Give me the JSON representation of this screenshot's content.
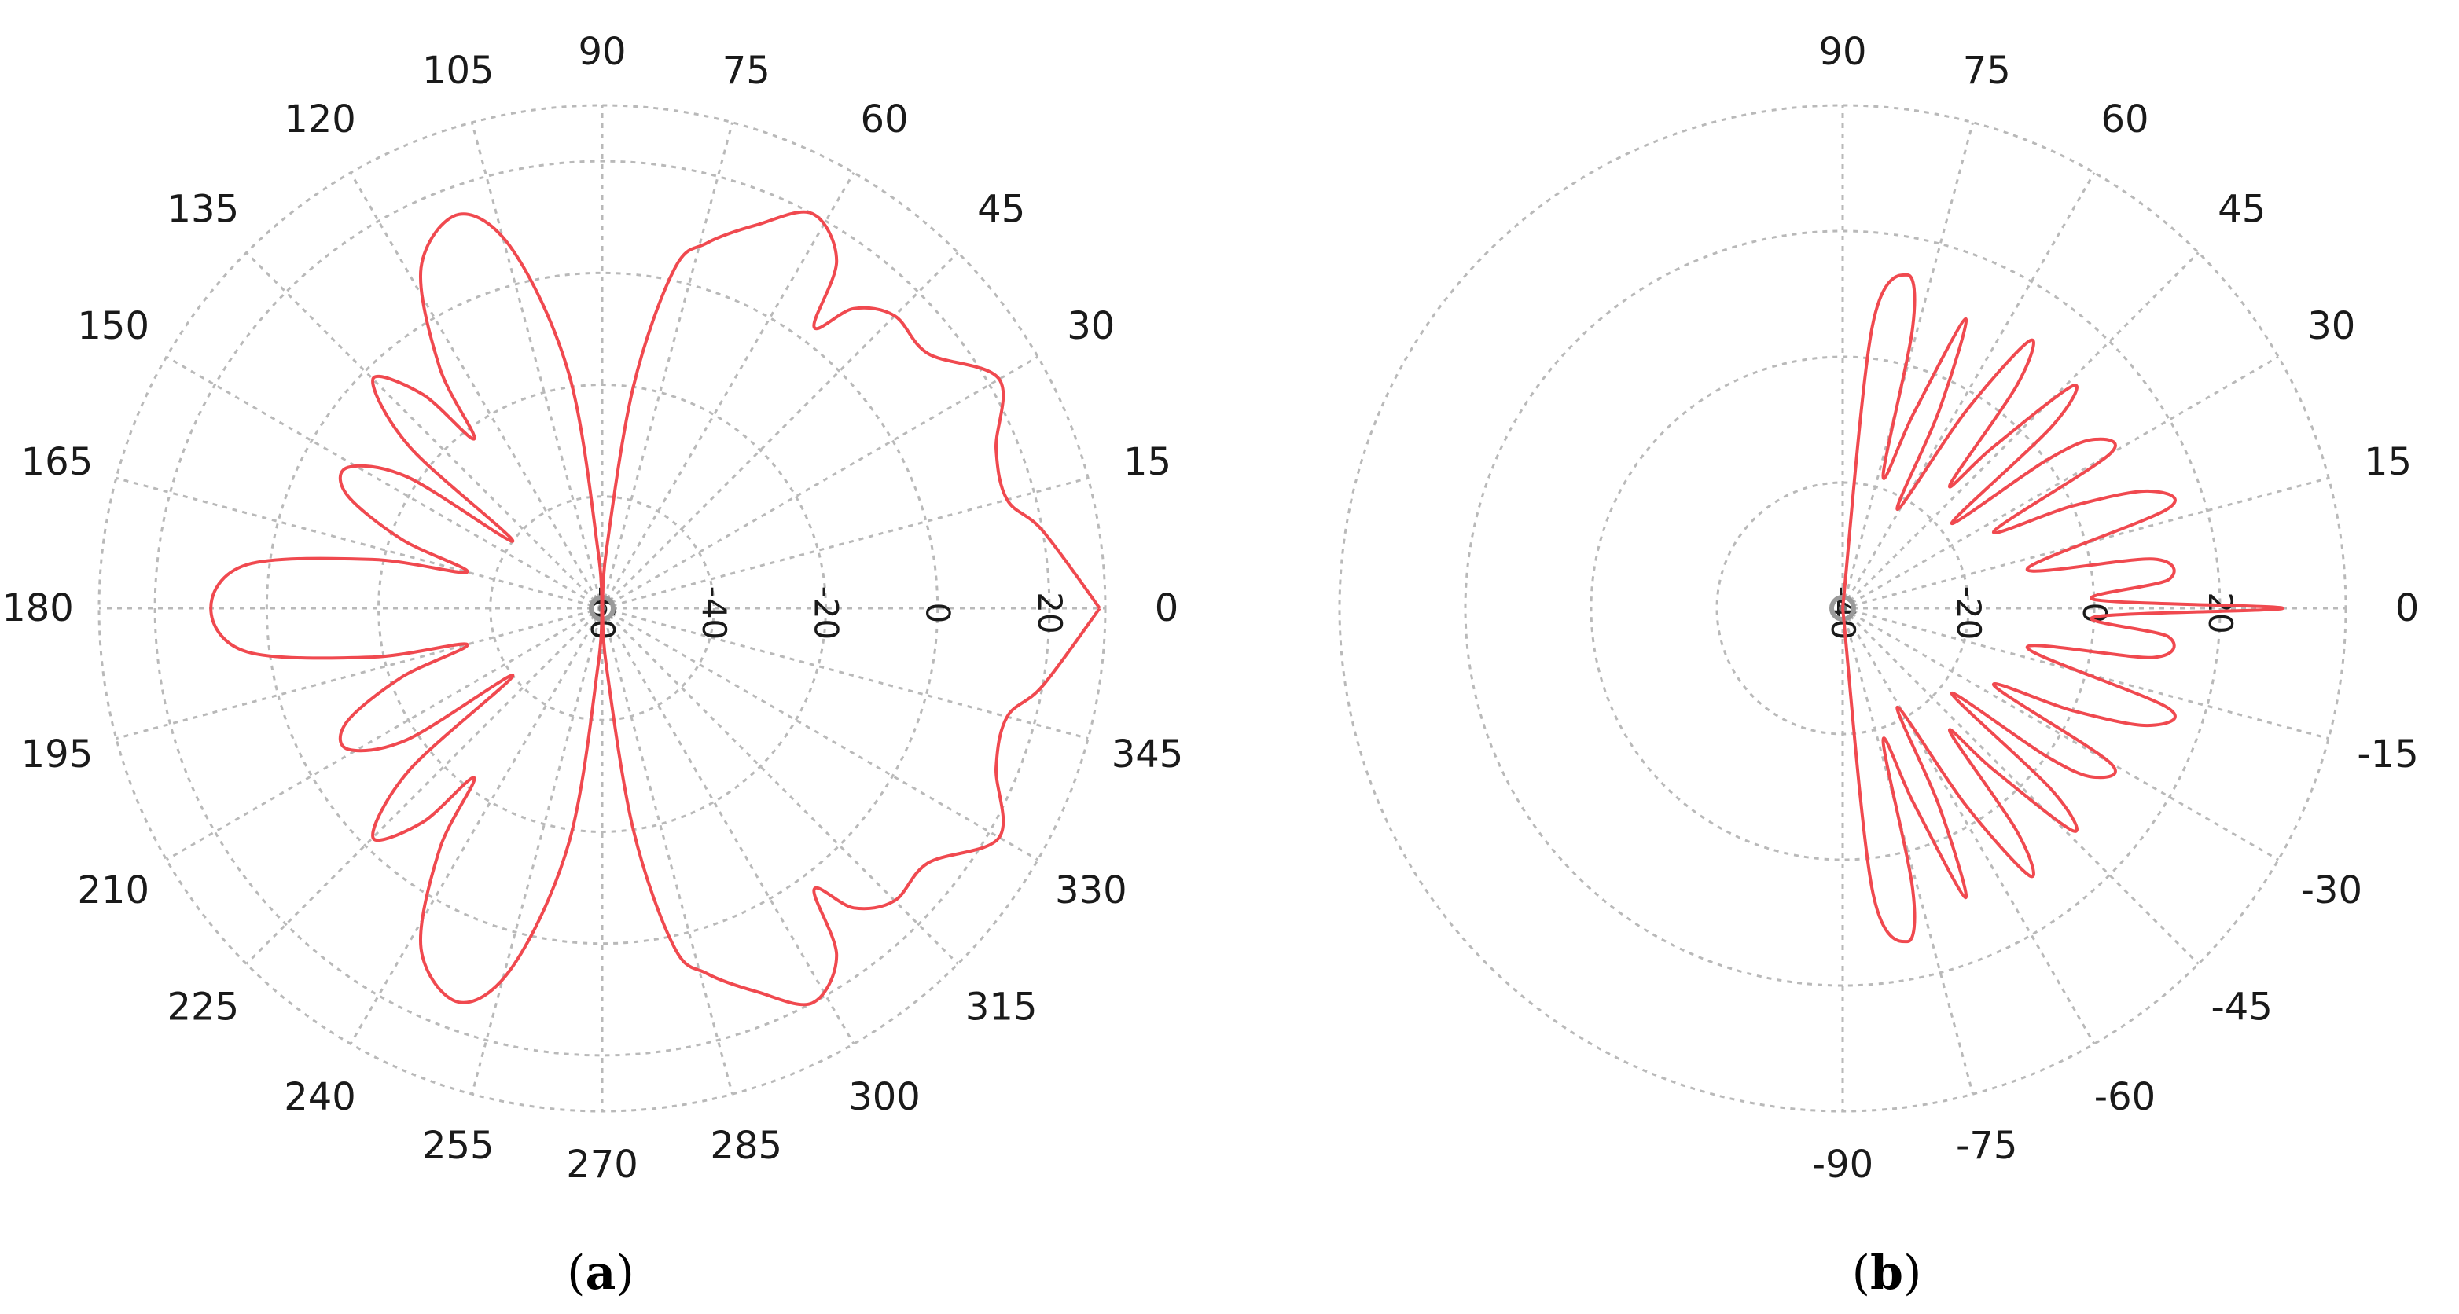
{
  "chart_data": [
    {
      "type": "polar",
      "panel_label": "a",
      "angle_unit": "deg",
      "angle_ticks": [
        0,
        15,
        30,
        45,
        60,
        75,
        90,
        105,
        120,
        135,
        150,
        165,
        180,
        195,
        210,
        225,
        240,
        255,
        270,
        285,
        300,
        315,
        330,
        345
      ],
      "radial_ticks": [
        -60,
        -40,
        -20,
        0,
        20
      ],
      "rlim": [
        -60,
        30
      ],
      "grid": true,
      "line_color": "#f0494f",
      "series": [
        {
          "points": [
            [
              0,
              29
            ],
            [
              10,
              20
            ],
            [
              15,
              15
            ],
            [
              22,
              16
            ],
            [
              30,
              22
            ],
            [
              38,
              14
            ],
            [
              45,
              14
            ],
            [
              50,
              10
            ],
            [
              53,
              3
            ],
            [
              56,
              15
            ],
            [
              62,
              20
            ],
            [
              68,
              14
            ],
            [
              74,
              8
            ],
            [
              78,
              2
            ],
            [
              82,
              -20
            ],
            [
              86,
              -50
            ],
            [
              90,
              -60
            ],
            [
              94,
              -50
            ],
            [
              98,
              -18
            ],
            [
              104,
              6
            ],
            [
              110,
              15
            ],
            [
              118,
              9
            ],
            [
              124,
              -8
            ],
            [
              127,
              -22
            ],
            [
              130,
              -10
            ],
            [
              135,
              -2
            ],
            [
              140,
              -15
            ],
            [
              143,
              -40
            ],
            [
              146,
              -18
            ],
            [
              151,
              -8
            ],
            [
              156,
              -10
            ],
            [
              161,
              -22
            ],
            [
              165,
              -35
            ],
            [
              168,
              -18
            ],
            [
              173,
              4
            ],
            [
              180,
              10
            ],
            [
              187,
              4
            ],
            [
              192,
              -18
            ],
            [
              195,
              -35
            ],
            [
              199,
              -22
            ],
            [
              204,
              -10
            ],
            [
              209,
              -8
            ],
            [
              214,
              -18
            ],
            [
              217,
              -40
            ],
            [
              220,
              -15
            ],
            [
              225,
              -2
            ],
            [
              230,
              -10
            ],
            [
              233,
              -22
            ],
            [
              236,
              -8
            ],
            [
              242,
              9
            ],
            [
              250,
              15
            ],
            [
              256,
              6
            ],
            [
              262,
              -18
            ],
            [
              266,
              -50
            ],
            [
              270,
              -60
            ],
            [
              274,
              -50
            ],
            [
              278,
              -20
            ],
            [
              282,
              2
            ],
            [
              286,
              8
            ],
            [
              292,
              14
            ],
            [
              298,
              20
            ],
            [
              304,
              15
            ],
            [
              307,
              3
            ],
            [
              310,
              10
            ],
            [
              315,
              14
            ],
            [
              322,
              14
            ],
            [
              330,
              22
            ],
            [
              338,
              16
            ],
            [
              345,
              15
            ],
            [
              350,
              20
            ],
            [
              360,
              29
            ]
          ]
        }
      ]
    },
    {
      "type": "polar",
      "panel_label": "b",
      "angle_unit": "deg",
      "angle_range": [
        -90,
        90
      ],
      "angle_ticks": [
        -90,
        -75,
        -60,
        -45,
        -30,
        -15,
        0,
        15,
        30,
        45,
        60,
        75,
        90
      ],
      "radial_ticks": [
        -40,
        -20,
        0,
        20
      ],
      "rlim": [
        -40,
        40
      ],
      "grid": true,
      "line_color": "#f0494f",
      "series": [
        {
          "points": [
            [
              -90,
              -40
            ],
            [
              -84,
              5
            ],
            [
              -79,
              14
            ],
            [
              -76,
              6
            ],
            [
              -73,
              -18
            ],
            [
              -70,
              -7
            ],
            [
              -67,
              10
            ],
            [
              -64,
              -5
            ],
            [
              -61,
              -22
            ],
            [
              -58,
              -3
            ],
            [
              -55,
              12
            ],
            [
              -52,
              5
            ],
            [
              -49,
              -14
            ],
            [
              -47,
              -5
            ],
            [
              -44,
              11
            ],
            [
              -41,
              4
            ],
            [
              -38,
              -18
            ],
            [
              -36,
              0
            ],
            [
              -34,
              8
            ],
            [
              -30,
              9
            ],
            [
              -27,
              -13
            ],
            [
              -24,
              0
            ],
            [
              -21,
              12
            ],
            [
              -17,
              14
            ],
            [
              -12,
              -10
            ],
            [
              -9,
              10
            ],
            [
              -5,
              12
            ],
            [
              -2,
              0
            ],
            [
              0,
              30
            ],
            [
              2,
              0
            ],
            [
              5,
              12
            ],
            [
              9,
              10
            ],
            [
              12,
              -10
            ],
            [
              17,
              14
            ],
            [
              21,
              12
            ],
            [
              24,
              0
            ],
            [
              27,
              -13
            ],
            [
              30,
              9
            ],
            [
              34,
              8
            ],
            [
              36,
              0
            ],
            [
              38,
              -18
            ],
            [
              41,
              4
            ],
            [
              44,
              11
            ],
            [
              47,
              -5
            ],
            [
              49,
              -14
            ],
            [
              52,
              5
            ],
            [
              55,
              12
            ],
            [
              58,
              -3
            ],
            [
              61,
              -22
            ],
            [
              64,
              -5
            ],
            [
              67,
              10
            ],
            [
              70,
              -7
            ],
            [
              73,
              -18
            ],
            [
              76,
              6
            ],
            [
              79,
              14
            ],
            [
              84,
              5
            ],
            [
              90,
              -40
            ]
          ]
        }
      ]
    }
  ]
}
